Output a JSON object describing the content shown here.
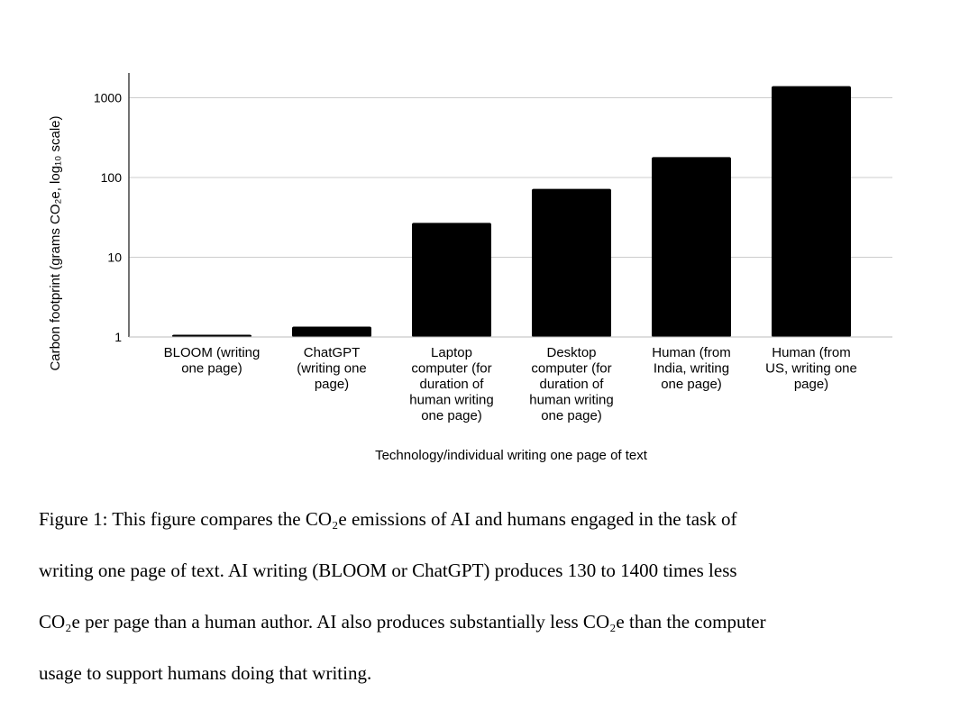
{
  "chart_data": {
    "type": "bar",
    "ylabel": "Carbon footprint (grams CO₂e, log₁₀ scale)",
    "xlabel": "Technology/individual writing one page of text",
    "yscale": "log10",
    "ylim": [
      1,
      1500
    ],
    "yticks": [
      1,
      10,
      100,
      1000
    ],
    "ytick_labels": [
      "1",
      "10",
      "100",
      "1000"
    ],
    "grid": true,
    "categories": [
      [
        "BLOOM (writing",
        "one page)"
      ],
      [
        "ChatGPT",
        "(writing one",
        "page)"
      ],
      [
        "Laptop",
        "computer (for",
        "duration of",
        "human writing",
        "one page)"
      ],
      [
        "Desktop",
        "computer (for",
        "duration of",
        "human writing",
        "one page)"
      ],
      [
        "Human (from",
        "India, writing",
        "one page)"
      ],
      [
        "Human (from",
        "US, writing one",
        "page)"
      ]
    ],
    "values": [
      1.05,
      1.35,
      27,
      72,
      180,
      1400
    ],
    "bar_color": "#000000"
  },
  "caption": {
    "lines": [
      "Figure 1: This figure compares the CO₂e emissions of AI and humans engaged in the task of",
      "writing one page of text. AI writing (BLOOM or ChatGPT) produces 130 to 1400 times less",
      "CO₂e per page than a human author. AI also produces substantially less CO₂e than the computer",
      "usage to support humans doing that writing."
    ]
  }
}
